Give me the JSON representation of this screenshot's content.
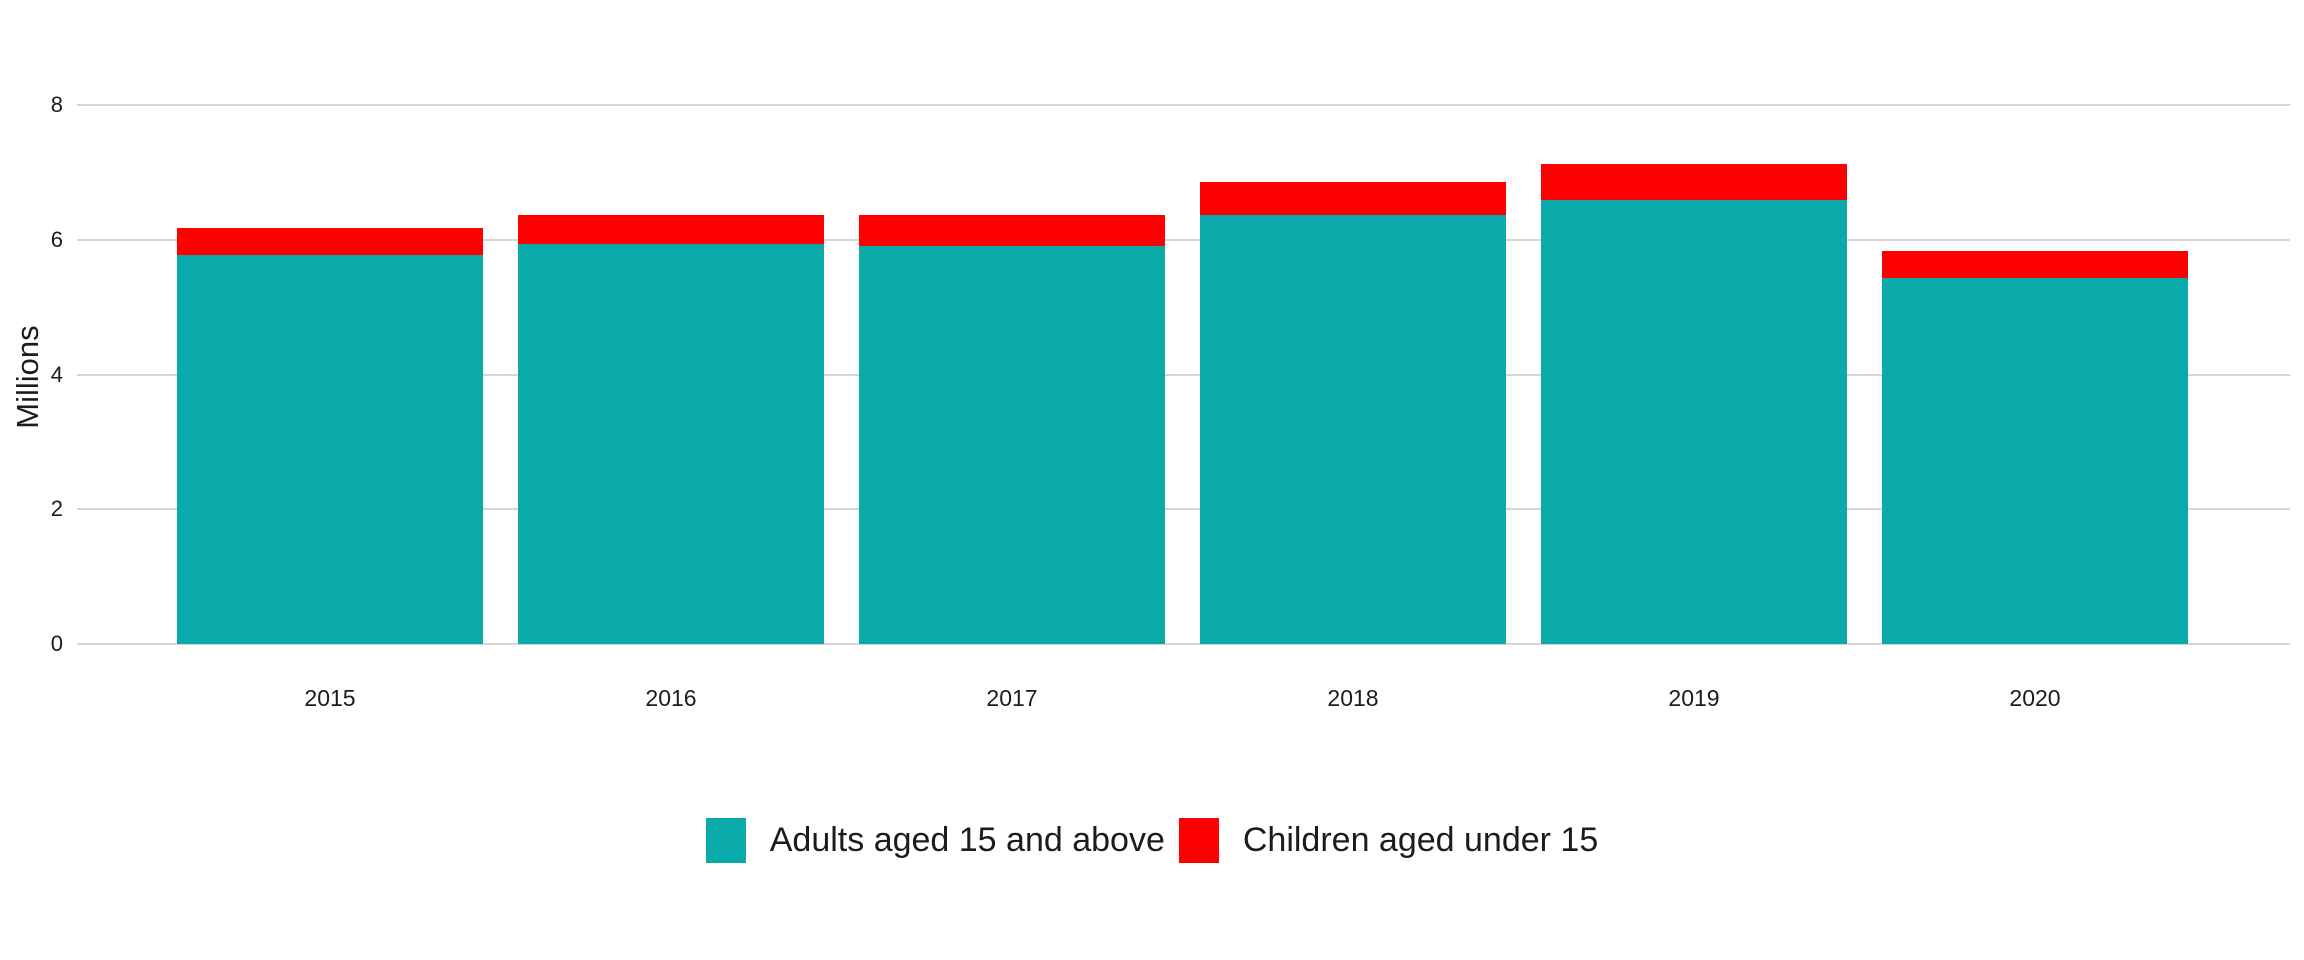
{
  "chart_data": {
    "type": "bar",
    "stacked": true,
    "title": "",
    "xlabel": "",
    "ylabel": "Millions",
    "categories": [
      "2015",
      "2016",
      "2017",
      "2018",
      "2019",
      "2020"
    ],
    "series": [
      {
        "name": "Adults aged 15 and above",
        "color": "#0aaaab",
        "values": [
          5.78,
          5.93,
          5.9,
          6.37,
          6.59,
          5.43
        ]
      },
      {
        "name": "Children aged under 15",
        "color": "#ff0000",
        "values": [
          0.4,
          0.43,
          0.46,
          0.49,
          0.53,
          0.4
        ]
      }
    ],
    "totals": [
      6.18,
      6.36,
      6.36,
      6.86,
      7.12,
      5.83
    ],
    "ylim": [
      0,
      8
    ],
    "yticks": [
      "0",
      "2",
      "4",
      "6",
      "8"
    ],
    "grid": true,
    "gridline_color": "#d6d6d6",
    "text_color": "#1c1c1c",
    "background_color": "#ffffff",
    "legend_position": "bottom-center"
  }
}
